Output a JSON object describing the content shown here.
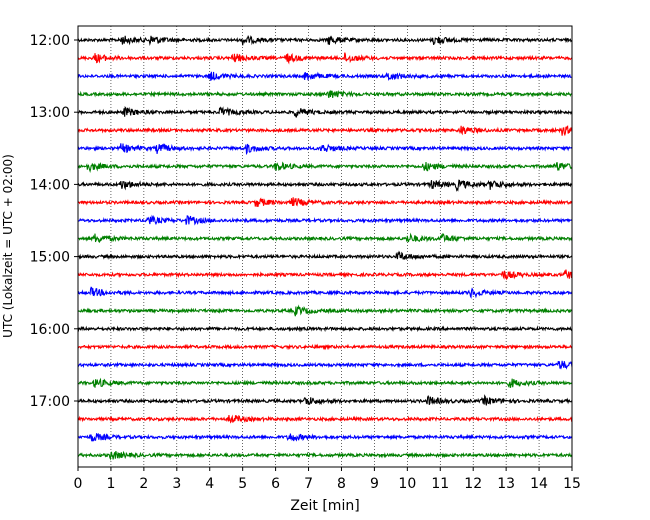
{
  "chart_data": {
    "type": "line",
    "title": "",
    "xlabel": "Zeit  [min]",
    "ylabel": "UTC (Lokalzeit = UTC + 02:00)",
    "xlim": [
      0,
      15
    ],
    "x_ticks": [
      0,
      1,
      2,
      3,
      4,
      5,
      6,
      7,
      8,
      9,
      10,
      11,
      12,
      13,
      14,
      15
    ],
    "x_tick_labels": [
      "0",
      "1",
      "2",
      "3",
      "4",
      "5",
      "6",
      "7",
      "8",
      "9",
      "10",
      "11",
      "12",
      "13",
      "14",
      "15"
    ],
    "y_tick_labels": [
      "12:00",
      "13:00",
      "14:00",
      "15:00",
      "16:00",
      "17:00"
    ],
    "grid": "vertical dotted",
    "trace_interval_min": 15,
    "color_cycle": [
      "#000000",
      "#ff0000",
      "#0000ff",
      "#008000"
    ],
    "series": [
      {
        "start": "12:00",
        "events": [
          1.3,
          2.2,
          5.0,
          7.6,
          10.8
        ]
      },
      {
        "start": "12:15",
        "events": [
          0.5,
          4.7,
          6.3,
          8.1
        ]
      },
      {
        "start": "12:30",
        "events": [
          4.0,
          6.9,
          9.4
        ]
      },
      {
        "start": "12:45",
        "events": [
          7.6
        ]
      },
      {
        "start": "13:00",
        "events": [
          1.4,
          4.3,
          6.6
        ]
      },
      {
        "start": "13:15",
        "events": [
          11.6,
          14.7
        ]
      },
      {
        "start": "13:30",
        "events": [
          1.3,
          2.4,
          5.1,
          7.4
        ]
      },
      {
        "start": "13:45",
        "events": [
          0.3,
          6.0,
          10.5,
          14.5
        ]
      },
      {
        "start": "14:00",
        "events": [
          1.3,
          10.7,
          11.5,
          12.5
        ]
      },
      {
        "start": "14:15",
        "events": [
          5.4,
          6.5
        ]
      },
      {
        "start": "14:30",
        "events": [
          2.1,
          3.3
        ]
      },
      {
        "start": "14:45",
        "events": [
          0.5,
          10.0,
          11.0
        ]
      },
      {
        "start": "15:00",
        "events": [
          9.7
        ]
      },
      {
        "start": "15:15",
        "events": [
          12.9,
          14.8
        ]
      },
      {
        "start": "15:30",
        "events": [
          0.4,
          11.9
        ]
      },
      {
        "start": "15:45",
        "events": [
          6.6
        ]
      },
      {
        "start": "16:00",
        "events": []
      },
      {
        "start": "16:15",
        "events": []
      },
      {
        "start": "16:30",
        "events": [
          14.6
        ]
      },
      {
        "start": "16:45",
        "events": [
          0.5,
          13.1
        ]
      },
      {
        "start": "17:00",
        "events": [
          6.9,
          10.6,
          12.3
        ]
      },
      {
        "start": "17:15",
        "events": [
          4.6
        ]
      },
      {
        "start": "17:30",
        "events": [
          0.4,
          6.4
        ]
      },
      {
        "start": "17:45",
        "events": [
          1.0
        ]
      }
    ]
  }
}
